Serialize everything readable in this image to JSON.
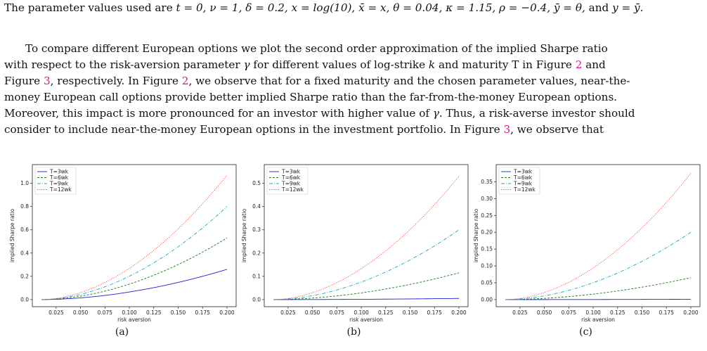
{
  "text": {
    "line1_a": "The parameter values used are ",
    "line1_math": "t = 0, ν = 1, δ = 0.2, x = log(10), x̄ = x, θ = 0.04, κ = 1.15, ρ = −0.4, ȳ = θ,",
    "line1_and": " and ",
    "line1_end": "y = ȳ.",
    "p1": "To compare different European options we plot the second order approximation of the implied Sharpe ratio",
    "p2_a": "with respect to the risk-aversion parameter ",
    "p2_gamma": "γ",
    "p2_b": " for different values of log-strike ",
    "p2_k": "k",
    "p2_c": " and maturity T in Figure ",
    "p2_ref1": "2",
    "p2_d": " and",
    "p3_a": "Figure ",
    "p3_ref": "3",
    "p3_b": ", respectively. In Figure ",
    "p3_ref2": "2",
    "p3_c": ", we observe that for a fixed maturity and the chosen parameter values, near-the-",
    "p4": "money European call options provide better implied Sharpe ratio than the far-from-the-money European options.",
    "p5_a": "Moreover, this impact is more pronounced for an investor with higher value of ",
    "p5_gamma": "γ",
    "p5_b": ". Thus, a risk-averse investor should",
    "p6_a": "consider to include near-the-money European options in the investment portfolio. In Figure ",
    "p6_ref": "3",
    "p6_b": ", we observe that"
  },
  "captions": [
    "(a)",
    "(b)",
    "(c)"
  ],
  "colors": {
    "T=3wk": "#1f1fd6",
    "T=6wk": "#1a7a1a",
    "T=9wk": "#17a9c2",
    "T=12wk": "#e8362c",
    "link": "#e0198c"
  },
  "chart_data": [
    {
      "type": "line",
      "xlabel": "risk aversion",
      "ylabel": "implied Sharpe ratio",
      "xlim": [
        0.01,
        0.2
      ],
      "ylim": [
        0.0,
        1.1
      ],
      "xticks": [
        "0.025",
        "0.050",
        "0.075",
        "0.100",
        "0.125",
        "0.150",
        "0.175",
        "0.200"
      ],
      "yticks": [
        "0.0",
        "0.2",
        "0.4",
        "0.6",
        "0.8",
        "1.0"
      ],
      "legend": "top-left",
      "x": [
        0.01,
        0.2
      ],
      "series": [
        {
          "name": "T=3wk",
          "style": "solid",
          "start": 0.0,
          "end": 0.26
        },
        {
          "name": "T=6wk",
          "style": "dashed",
          "start": 0.0,
          "end": 0.53
        },
        {
          "name": "T=9wk",
          "style": "dashdot",
          "start": 0.0,
          "end": 0.8
        },
        {
          "name": "T=12wk",
          "style": "dotted",
          "start": 0.0,
          "end": 1.07
        }
      ]
    },
    {
      "type": "line",
      "xlabel": "risk aversion",
      "ylabel": "implied Sharpe ratio",
      "xlim": [
        0.01,
        0.2
      ],
      "ylim": [
        0.0,
        0.55
      ],
      "xticks": [
        "0.025",
        "0.050",
        "0.075",
        "0.100",
        "0.125",
        "0.150",
        "0.175",
        "0.200"
      ],
      "yticks": [
        "0.0",
        "0.1",
        "0.2",
        "0.3",
        "0.4",
        "0.5"
      ],
      "legend": "top-left",
      "x": [
        0.01,
        0.2
      ],
      "series": [
        {
          "name": "T=3wk",
          "style": "solid",
          "start": 0.0,
          "end": 0.005
        },
        {
          "name": "T=6wk",
          "style": "dashed",
          "start": 0.0,
          "end": 0.115
        },
        {
          "name": "T=9wk",
          "style": "dashdot",
          "start": 0.0,
          "end": 0.3
        },
        {
          "name": "T=12wk",
          "style": "dotted",
          "start": 0.0,
          "end": 0.53
        }
      ]
    },
    {
      "type": "line",
      "xlabel": "risk aversion",
      "ylabel": "implied Sharpe ratio",
      "xlim": [
        0.01,
        0.2
      ],
      "ylim": [
        0.0,
        0.38
      ],
      "xticks": [
        "0.025",
        "0.050",
        "0.075",
        "0.100",
        "0.125",
        "0.150",
        "0.175",
        "0.200"
      ],
      "yticks": [
        "0.00",
        "0.05",
        "0.10",
        "0.15",
        "0.20",
        "0.25",
        "0.30",
        "0.35"
      ],
      "legend": "top-left",
      "x": [
        0.01,
        0.2
      ],
      "series": [
        {
          "name": "T=3wk",
          "style": "solid",
          "start": 0.0,
          "end": 0.001
        },
        {
          "name": "T=6wk",
          "style": "dashed",
          "start": 0.0,
          "end": 0.065
        },
        {
          "name": "T=9wk",
          "style": "dashdot",
          "start": 0.0,
          "end": 0.2
        },
        {
          "name": "T=12wk",
          "style": "dotted",
          "start": 0.0,
          "end": 0.375
        }
      ]
    }
  ]
}
